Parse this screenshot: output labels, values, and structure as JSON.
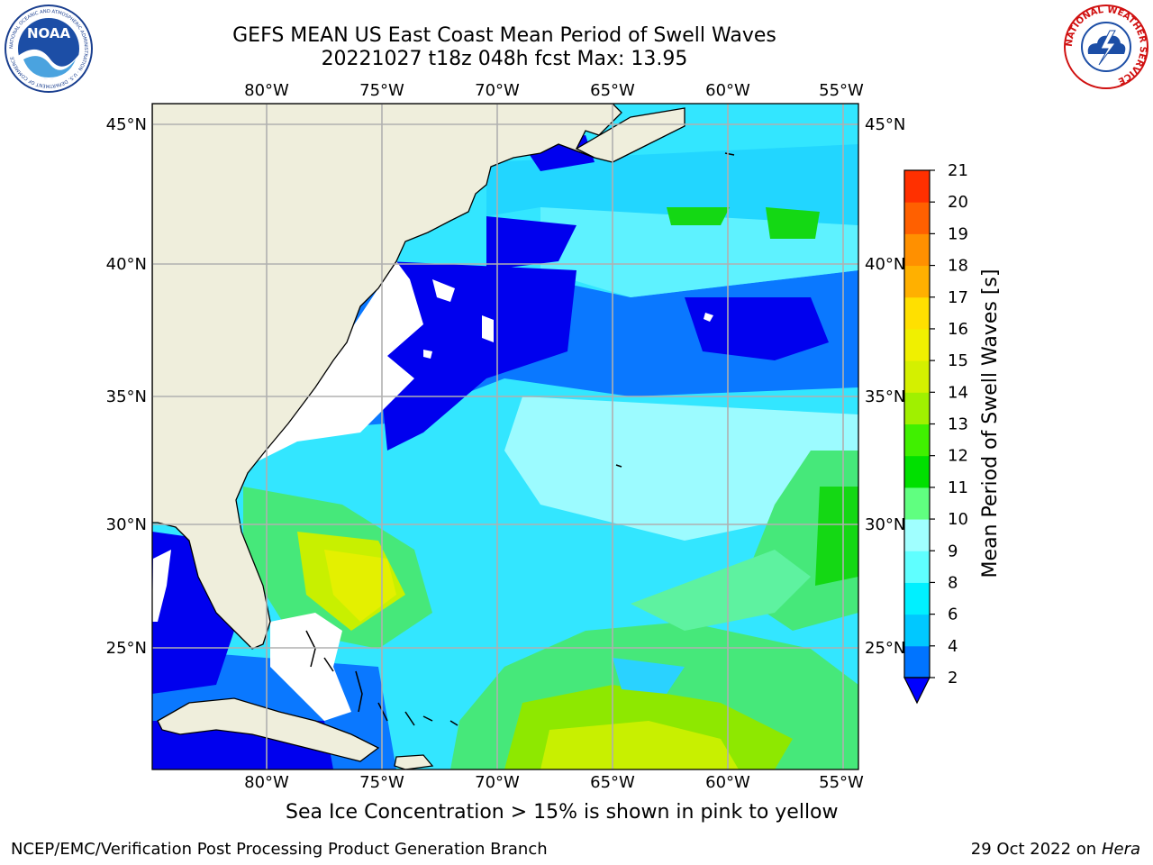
{
  "header": {
    "title_line1": "GEFS MEAN US East Coast Mean Period of Swell Waves",
    "title_line2": "20221027 t18z 048h fcst   Max: 13.95"
  },
  "map": {
    "lon_labels": [
      "80°W",
      "75°W",
      "70°W",
      "65°W",
      "60°W",
      "55°W"
    ],
    "lat_labels": [
      "45°N",
      "40°N",
      "35°N",
      "30°N",
      "25°N"
    ],
    "land_color": "#efeedc",
    "ice_mask_color": "#ffffff"
  },
  "colorbar": {
    "label": "Mean Period of Swell Waves [s]",
    "ticks": [
      "2",
      "4",
      "6",
      "8",
      "9",
      "10",
      "11",
      "12",
      "13",
      "14",
      "15",
      "16",
      "17",
      "18",
      "19",
      "20",
      "21"
    ],
    "colors": [
      "#0074ff",
      "#00c8ff",
      "#00f0ff",
      "#5fffff",
      "#a0ffff",
      "#60ff80",
      "#00e000",
      "#40f000",
      "#a0f000",
      "#d4f000",
      "#f0f000",
      "#ffe000",
      "#ffb000",
      "#ff9000",
      "#ff6000",
      "#ff3000",
      "#ff0000"
    ],
    "under_color": "#0000ff"
  },
  "footer": {
    "note": "Sea Ice Concentration > 15% is shown in pink to yellow",
    "org": "NCEP/EMC/Verification Post Processing Product Generation Branch",
    "date": "29 Oct 2022 on",
    "host": "Hera"
  },
  "logos": {
    "noaa_text": "NOAA",
    "noaa_ring": "NATIONAL OCEANIC AND ATMOSPHERIC ADMINISTRATION · U.S. DEPARTMENT OF COMMERCE",
    "nws_ring": "NATIONAL WEATHER SERVICE"
  }
}
